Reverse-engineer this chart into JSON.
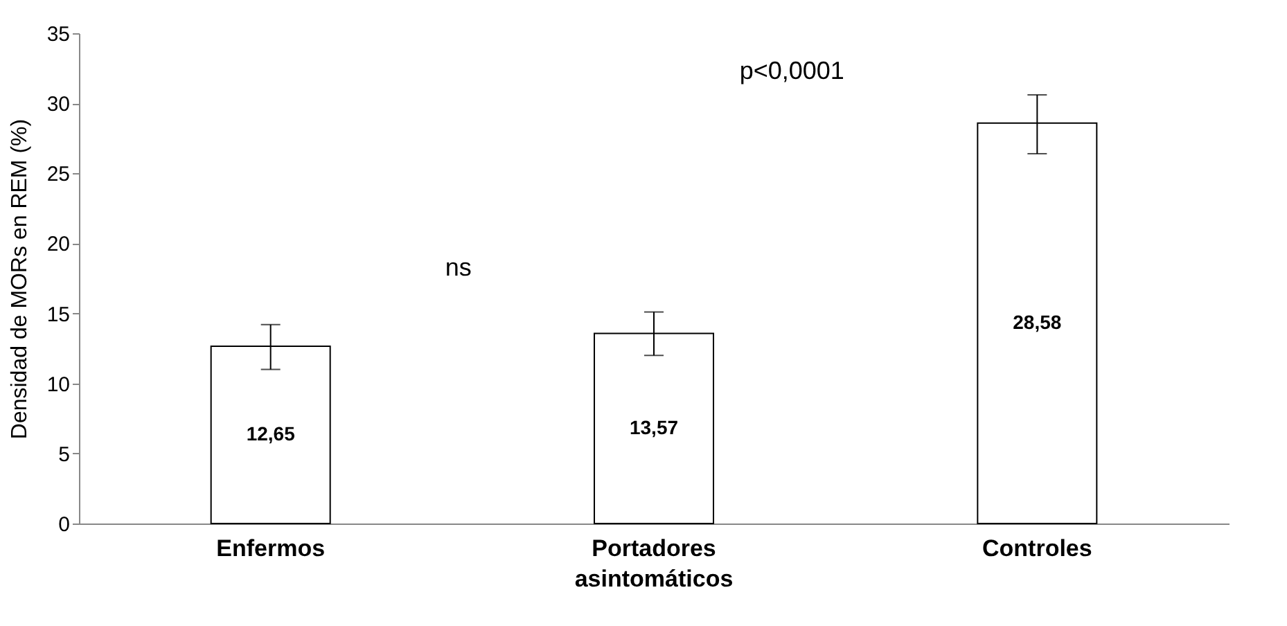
{
  "chart_data": {
    "type": "bar",
    "ylabel": "Densidad de MORs en REM (%)",
    "categories": [
      "Enfermos",
      "Portadores asintomáticos",
      "Controles"
    ],
    "values": [
      12.65,
      13.57,
      28.58
    ],
    "value_labels": [
      "12,65",
      "13,57",
      "28,58"
    ],
    "errors": [
      [
        11.0,
        14.2
      ],
      [
        12.0,
        15.1
      ],
      [
        26.4,
        30.6
      ]
    ],
    "color": "#ffffff",
    "ylim": [
      0,
      35
    ],
    "yticks": [
      0,
      5,
      10,
      15,
      20,
      25,
      30,
      35
    ],
    "grid": false,
    "annotations": [
      "ns",
      "p<0,0001"
    ]
  }
}
